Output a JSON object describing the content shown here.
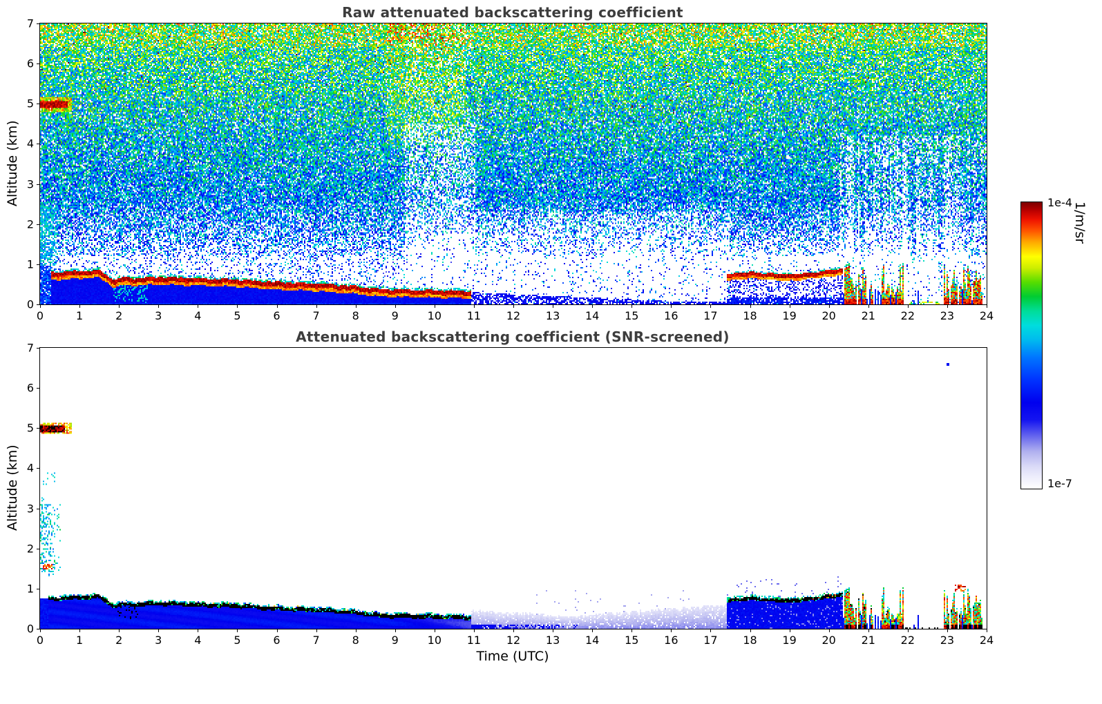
{
  "figure": {
    "xlabel": "Time (UTC)"
  },
  "colorbar": {
    "label": "1/m/sr",
    "max_label": "1e-4",
    "min_label": "1e-7",
    "scale": "log",
    "stops": [
      [
        0.0,
        "#ffffff"
      ],
      [
        0.04,
        "#eeeefc"
      ],
      [
        0.08,
        "#d9d9f7"
      ],
      [
        0.13,
        "#b0b0ef"
      ],
      [
        0.18,
        "#6a6aee"
      ],
      [
        0.24,
        "#1414f0"
      ],
      [
        0.3,
        "#0000ee"
      ],
      [
        0.38,
        "#0033ff"
      ],
      [
        0.46,
        "#0077ff"
      ],
      [
        0.52,
        "#00bbee"
      ],
      [
        0.57,
        "#00dddd"
      ],
      [
        0.62,
        "#00dd99"
      ],
      [
        0.67,
        "#00cc33"
      ],
      [
        0.72,
        "#55dd00"
      ],
      [
        0.77,
        "#ccee00"
      ],
      [
        0.81,
        "#ffff00"
      ],
      [
        0.86,
        "#ffaa00"
      ],
      [
        0.9,
        "#ff5500"
      ],
      [
        0.94,
        "#ee1100"
      ],
      [
        0.97,
        "#bb0000"
      ],
      [
        1.0,
        "#7a0000"
      ]
    ]
  },
  "chart_data": [
    {
      "type": "heatmap",
      "title": "Raw attenuated backscattering coefficient",
      "xlabel": "",
      "ylabel": "Altitude (km)",
      "xlim": [
        0,
        24
      ],
      "ylim": [
        0,
        7
      ],
      "xticks": [
        0,
        1,
        2,
        3,
        4,
        5,
        6,
        7,
        8,
        9,
        10,
        11,
        12,
        13,
        14,
        15,
        16,
        17,
        18,
        19,
        20,
        21,
        22,
        23,
        24
      ],
      "yticks": [
        0,
        1,
        2,
        3,
        4,
        5,
        6,
        7
      ],
      "value_range": [
        "1e-7",
        "1e-4"
      ],
      "units": "1/m/sr",
      "features": {
        "background_noise": "Dense random speckle; apparent noise values rise with altitude from blue/cyan below ~3 km to green-yellow near 7 km; clearer columns near 9.5-11 UTC and after 20 UTC",
        "cloud": {
          "time_utc": [
            0.0,
            0.8
          ],
          "altitude_km": [
            4.8,
            5.15
          ],
          "note": "strong cloud echo near 1e-4"
        },
        "morning_plume": {
          "time_utc": [
            0.0,
            0.45
          ],
          "altitude_km": [
            0.95,
            2.45
          ]
        },
        "boundary_layer_top_km": {
          "t": [
            0.5,
            1.0,
            1.5,
            1.9,
            2.1,
            2.4,
            3.0,
            4.0,
            5.0,
            6.0,
            7.0,
            8.0,
            8.6,
            9.0,
            10.0,
            10.9
          ],
          "h": [
            0.75,
            0.78,
            0.8,
            0.55,
            0.62,
            0.6,
            0.63,
            0.6,
            0.57,
            0.5,
            0.47,
            0.4,
            0.33,
            0.32,
            0.3,
            0.28
          ]
        },
        "evening_layer_top_km": {
          "t": [
            17.45,
            18.0,
            18.5,
            19.0,
            19.5,
            20.0,
            20.3
          ],
          "h": [
            0.7,
            0.76,
            0.72,
            0.7,
            0.74,
            0.8,
            0.85
          ]
        },
        "surface_layer_11_17_utc": {
          "top_km_start": 0.3,
          "top_km_end": 0.1
        },
        "precipitation": {
          "time_utc": [
            20.3,
            23.9
          ],
          "max_top_km": 1.0,
          "note": "intermittent intense echoes to ~1 km with clear gaps 22-22.8 UTC"
        }
      }
    },
    {
      "type": "heatmap",
      "title": "Attenuated backscattering coefficient (SNR-screened)",
      "xlabel": "Time (UTC)",
      "ylabel": "Altitude (km)",
      "xlim": [
        0,
        24
      ],
      "ylim": [
        0,
        7
      ],
      "xticks": [
        0,
        1,
        2,
        3,
        4,
        5,
        6,
        7,
        8,
        9,
        10,
        11,
        12,
        13,
        14,
        15,
        16,
        17,
        18,
        19,
        20,
        21,
        22,
        23,
        24
      ],
      "yticks": [
        0,
        1,
        2,
        3,
        4,
        5,
        6,
        7
      ],
      "value_range": [
        "1e-7",
        "1e-4"
      ],
      "units": "1/m/sr",
      "features": {
        "screening": "Low-SNR pixels removed (white); only cloud, aerosol layers and boundary layer remain",
        "cloud": {
          "time_utc": [
            0.0,
            0.8
          ],
          "altitude_km": [
            4.85,
            5.12
          ],
          "note": "saturated core rendered black / dark red"
        },
        "morning_plume": {
          "time_utc": [
            0.0,
            0.5
          ],
          "altitude_km": [
            1.3,
            3.9
          ],
          "note": "cyan-green streaks, small red patch near 1.55 km"
        },
        "boundary_layer_top_km": {
          "t": [
            0.5,
            1.0,
            1.5,
            1.9,
            2.1,
            2.4,
            3.0,
            4.0,
            5.0,
            6.0,
            7.0,
            8.0,
            8.6,
            9.0,
            10.0,
            10.9
          ],
          "h": [
            0.75,
            0.78,
            0.8,
            0.55,
            0.62,
            0.6,
            0.63,
            0.6,
            0.57,
            0.5,
            0.47,
            0.4,
            0.33,
            0.32,
            0.3,
            0.28
          ],
          "note": "layer top drawn black with cyan/green fringe, deep blue fill below"
        },
        "residual_layer_11_17_utc": {
          "t": [
            11.0,
            13.5,
            17.4
          ],
          "top_km": [
            0.45,
            0.3,
            0.6
          ],
          "note": "pale lavender-blue residual layer"
        },
        "evening_layer_top_km": {
          "t": [
            17.45,
            18.0,
            18.5,
            19.0,
            19.5,
            20.0,
            20.3
          ],
          "h": [
            0.7,
            0.76,
            0.72,
            0.7,
            0.74,
            0.8,
            0.85
          ]
        },
        "precipitation": {
          "time_utc": [
            20.3,
            23.9
          ],
          "max_top_km": 1.1,
          "note": "red/black columns to ~1 km, red patch near 23.3 UTC at 1.0 km"
        }
      }
    }
  ]
}
